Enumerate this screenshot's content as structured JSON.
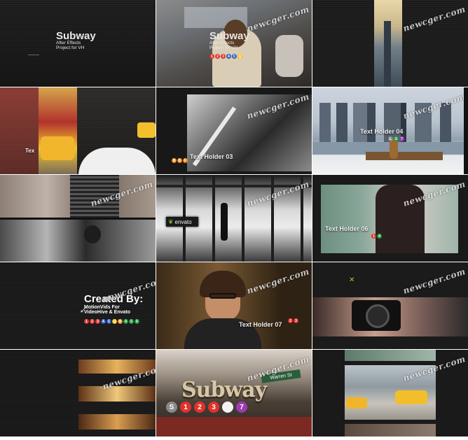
{
  "watermark": "newcger.com",
  "tiles": {
    "t1": {
      "title": "Subway",
      "sub1": "After Effects",
      "sub2": "Project for VH"
    },
    "t2": {
      "title": "Subway",
      "sub1": "After Effects",
      "sub2": "Project for VH"
    },
    "t5": {
      "holder": "Text Holder 03"
    },
    "t6": {
      "holder": "Text Holder 04"
    },
    "t4": {
      "holder_partial": "Tex"
    },
    "t8": {
      "logo": "envato"
    },
    "t9": {
      "holder": "Text Holder 06"
    },
    "t10": {
      "heading": "Created By:",
      "line1": "MotionVids For",
      "line2": "VideoHive & Envato"
    },
    "t11": {
      "holder": "Text Holder 07"
    },
    "t14": {
      "sign": "Subway",
      "street_sign": "Warren St"
    }
  },
  "line_colors": {
    "red": "#e0322c",
    "green": "#1f9a3f",
    "blue": "#2b5db8",
    "orange": "#f08a1e",
    "yellow": "#f4c01e",
    "purple": "#9a3cb0",
    "gray": "#8a8a8a"
  }
}
